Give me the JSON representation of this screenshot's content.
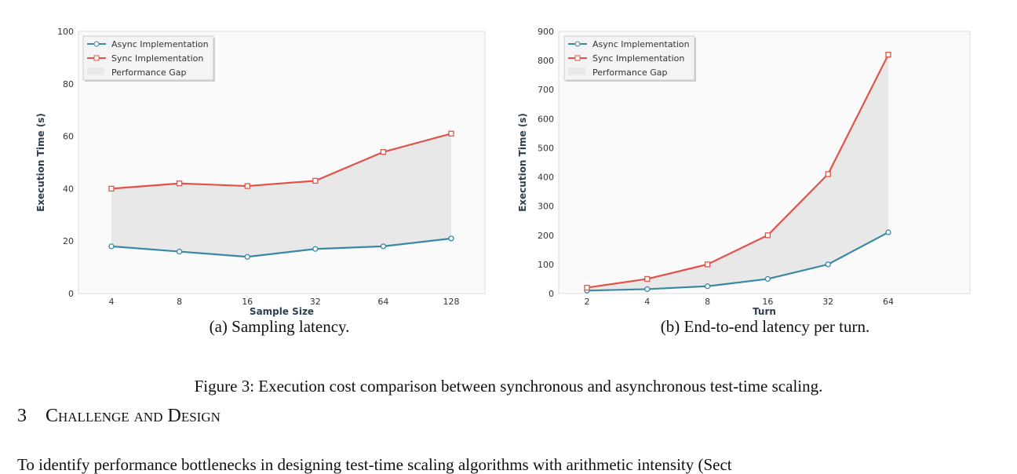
{
  "chart_data": [
    {
      "type": "line",
      "title": "",
      "xlabel": "Sample Size",
      "ylabel": "Execution Time (s)",
      "categories": [
        "4",
        "8",
        "16",
        "32",
        "64",
        "128"
      ],
      "ylim": [
        0,
        100
      ],
      "yticks": [
        0,
        20,
        40,
        60,
        80,
        100
      ],
      "legend": "top-left",
      "series": [
        {
          "name": "Async Implementation",
          "color": "#3b87a6",
          "marker": "circle",
          "values": [
            18,
            16,
            14,
            17,
            18,
            21
          ]
        },
        {
          "name": "Sync Implementation",
          "color": "#e0524a",
          "marker": "square",
          "values": [
            40,
            42,
            41,
            43,
            54,
            61
          ]
        }
      ],
      "fill": {
        "name": "Performance Gap",
        "color": "#e8e8e8"
      },
      "subcaption": "(a) Sampling latency."
    },
    {
      "type": "line",
      "title": "",
      "xlabel": "Turn",
      "ylabel": "Execution Time (s)",
      "categories": [
        "2",
        "4",
        "8",
        "16",
        "32",
        "64"
      ],
      "ylim": [
        0,
        900
      ],
      "yticks": [
        0,
        100,
        200,
        300,
        400,
        500,
        600,
        700,
        800,
        900
      ],
      "legend": "top-left",
      "series": [
        {
          "name": "Async Implementation",
          "color": "#3b87a6",
          "marker": "circle",
          "values": [
            10,
            15,
            25,
            50,
            100,
            210
          ]
        },
        {
          "name": "Sync Implementation",
          "color": "#e0524a",
          "marker": "square",
          "values": [
            20,
            50,
            100,
            200,
            410,
            820
          ]
        }
      ],
      "fill": {
        "name": "Performance Gap",
        "color": "#e8e8e8"
      },
      "subcaption": "(b) End-to-end latency per turn."
    }
  ],
  "figure_caption": "Figure 3: Execution cost comparison between synchronous and asynchronous test-time scaling.",
  "section": {
    "number": "3",
    "title": "Challenge and Design"
  },
  "body_text": "To identify performance bottlenecks in designing test-time scaling algorithms with arithmetic intensity (Sect"
}
